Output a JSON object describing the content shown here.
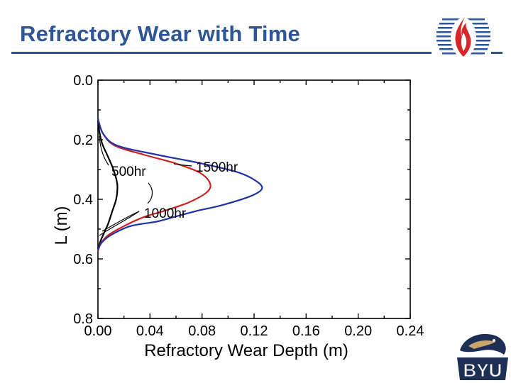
{
  "slide": {
    "title": "Refractory Wear with Time"
  },
  "logos": {
    "top_right": "flame-logo-icon",
    "bottom_right": "byu-cougar-logo-icon",
    "bottom_right_text": "BYU"
  },
  "colors": {
    "title": "#2E5597",
    "rule": "#2E5597",
    "series_500hr": "#000000",
    "series_1000hr": "#CC2222",
    "series_1500hr": "#2233AA"
  },
  "chart_data": {
    "type": "line",
    "title": "",
    "xlabel": "Refractory Wear Depth (m)",
    "ylabel": "L (m)",
    "xlim": [
      0.0,
      0.24
    ],
    "ylim": [
      0.0,
      0.8
    ],
    "y_inverted": true,
    "xticks": [
      "0.00",
      "0.04",
      "0.08",
      "0.12",
      "0.16",
      "0.20",
      "0.24"
    ],
    "yticks": [
      "0.0",
      "0.2",
      "0.4",
      "0.6",
      "0.8"
    ],
    "grid": false,
    "series": [
      {
        "name": "500hr",
        "color": "#000000",
        "points": [
          [
            0.0,
            0.13
          ],
          [
            0.001,
            0.17
          ],
          [
            0.003,
            0.21
          ],
          [
            0.007,
            0.25
          ],
          [
            0.011,
            0.29
          ],
          [
            0.014,
            0.33
          ],
          [
            0.015,
            0.36
          ],
          [
            0.014,
            0.4
          ],
          [
            0.011,
            0.44
          ],
          [
            0.008,
            0.48
          ],
          [
            0.005,
            0.51
          ],
          [
            0.002,
            0.54
          ],
          [
            0.0,
            0.57
          ]
        ]
      },
      {
        "name": "1000hr",
        "color": "#CC2222",
        "points": [
          [
            0.0,
            0.13
          ],
          [
            0.004,
            0.18
          ],
          [
            0.013,
            0.22
          ],
          [
            0.035,
            0.25
          ],
          [
            0.06,
            0.28
          ],
          [
            0.078,
            0.31
          ],
          [
            0.086,
            0.345
          ],
          [
            0.084,
            0.375
          ],
          [
            0.07,
            0.41
          ],
          [
            0.05,
            0.44
          ],
          [
            0.035,
            0.46
          ],
          [
            0.02,
            0.49
          ],
          [
            0.008,
            0.52
          ],
          [
            0.002,
            0.55
          ],
          [
            0.0,
            0.575
          ]
        ]
      },
      {
        "name": "1500hr",
        "color": "#2233AA",
        "points": [
          [
            0.0,
            0.13
          ],
          [
            0.004,
            0.18
          ],
          [
            0.015,
            0.22
          ],
          [
            0.045,
            0.25
          ],
          [
            0.08,
            0.28
          ],
          [
            0.108,
            0.31
          ],
          [
            0.122,
            0.34
          ],
          [
            0.126,
            0.365
          ],
          [
            0.117,
            0.39
          ],
          [
            0.095,
            0.42
          ],
          [
            0.075,
            0.44
          ],
          [
            0.058,
            0.46
          ],
          [
            0.045,
            0.475
          ],
          [
            0.025,
            0.49
          ],
          [
            0.01,
            0.52
          ],
          [
            0.003,
            0.545
          ],
          [
            0.0,
            0.57
          ]
        ]
      }
    ],
    "annotations": [
      {
        "text": "500hr",
        "points_to": "500hr",
        "at": [
          0.0,
          0.2
        ]
      },
      {
        "text": "1500hr",
        "points_to": "1500hr",
        "at": [
          0.06,
          0.29
        ]
      },
      {
        "text": "1000hr",
        "points_to": "1000hr",
        "at": [
          0.03,
          0.41
        ]
      }
    ]
  }
}
